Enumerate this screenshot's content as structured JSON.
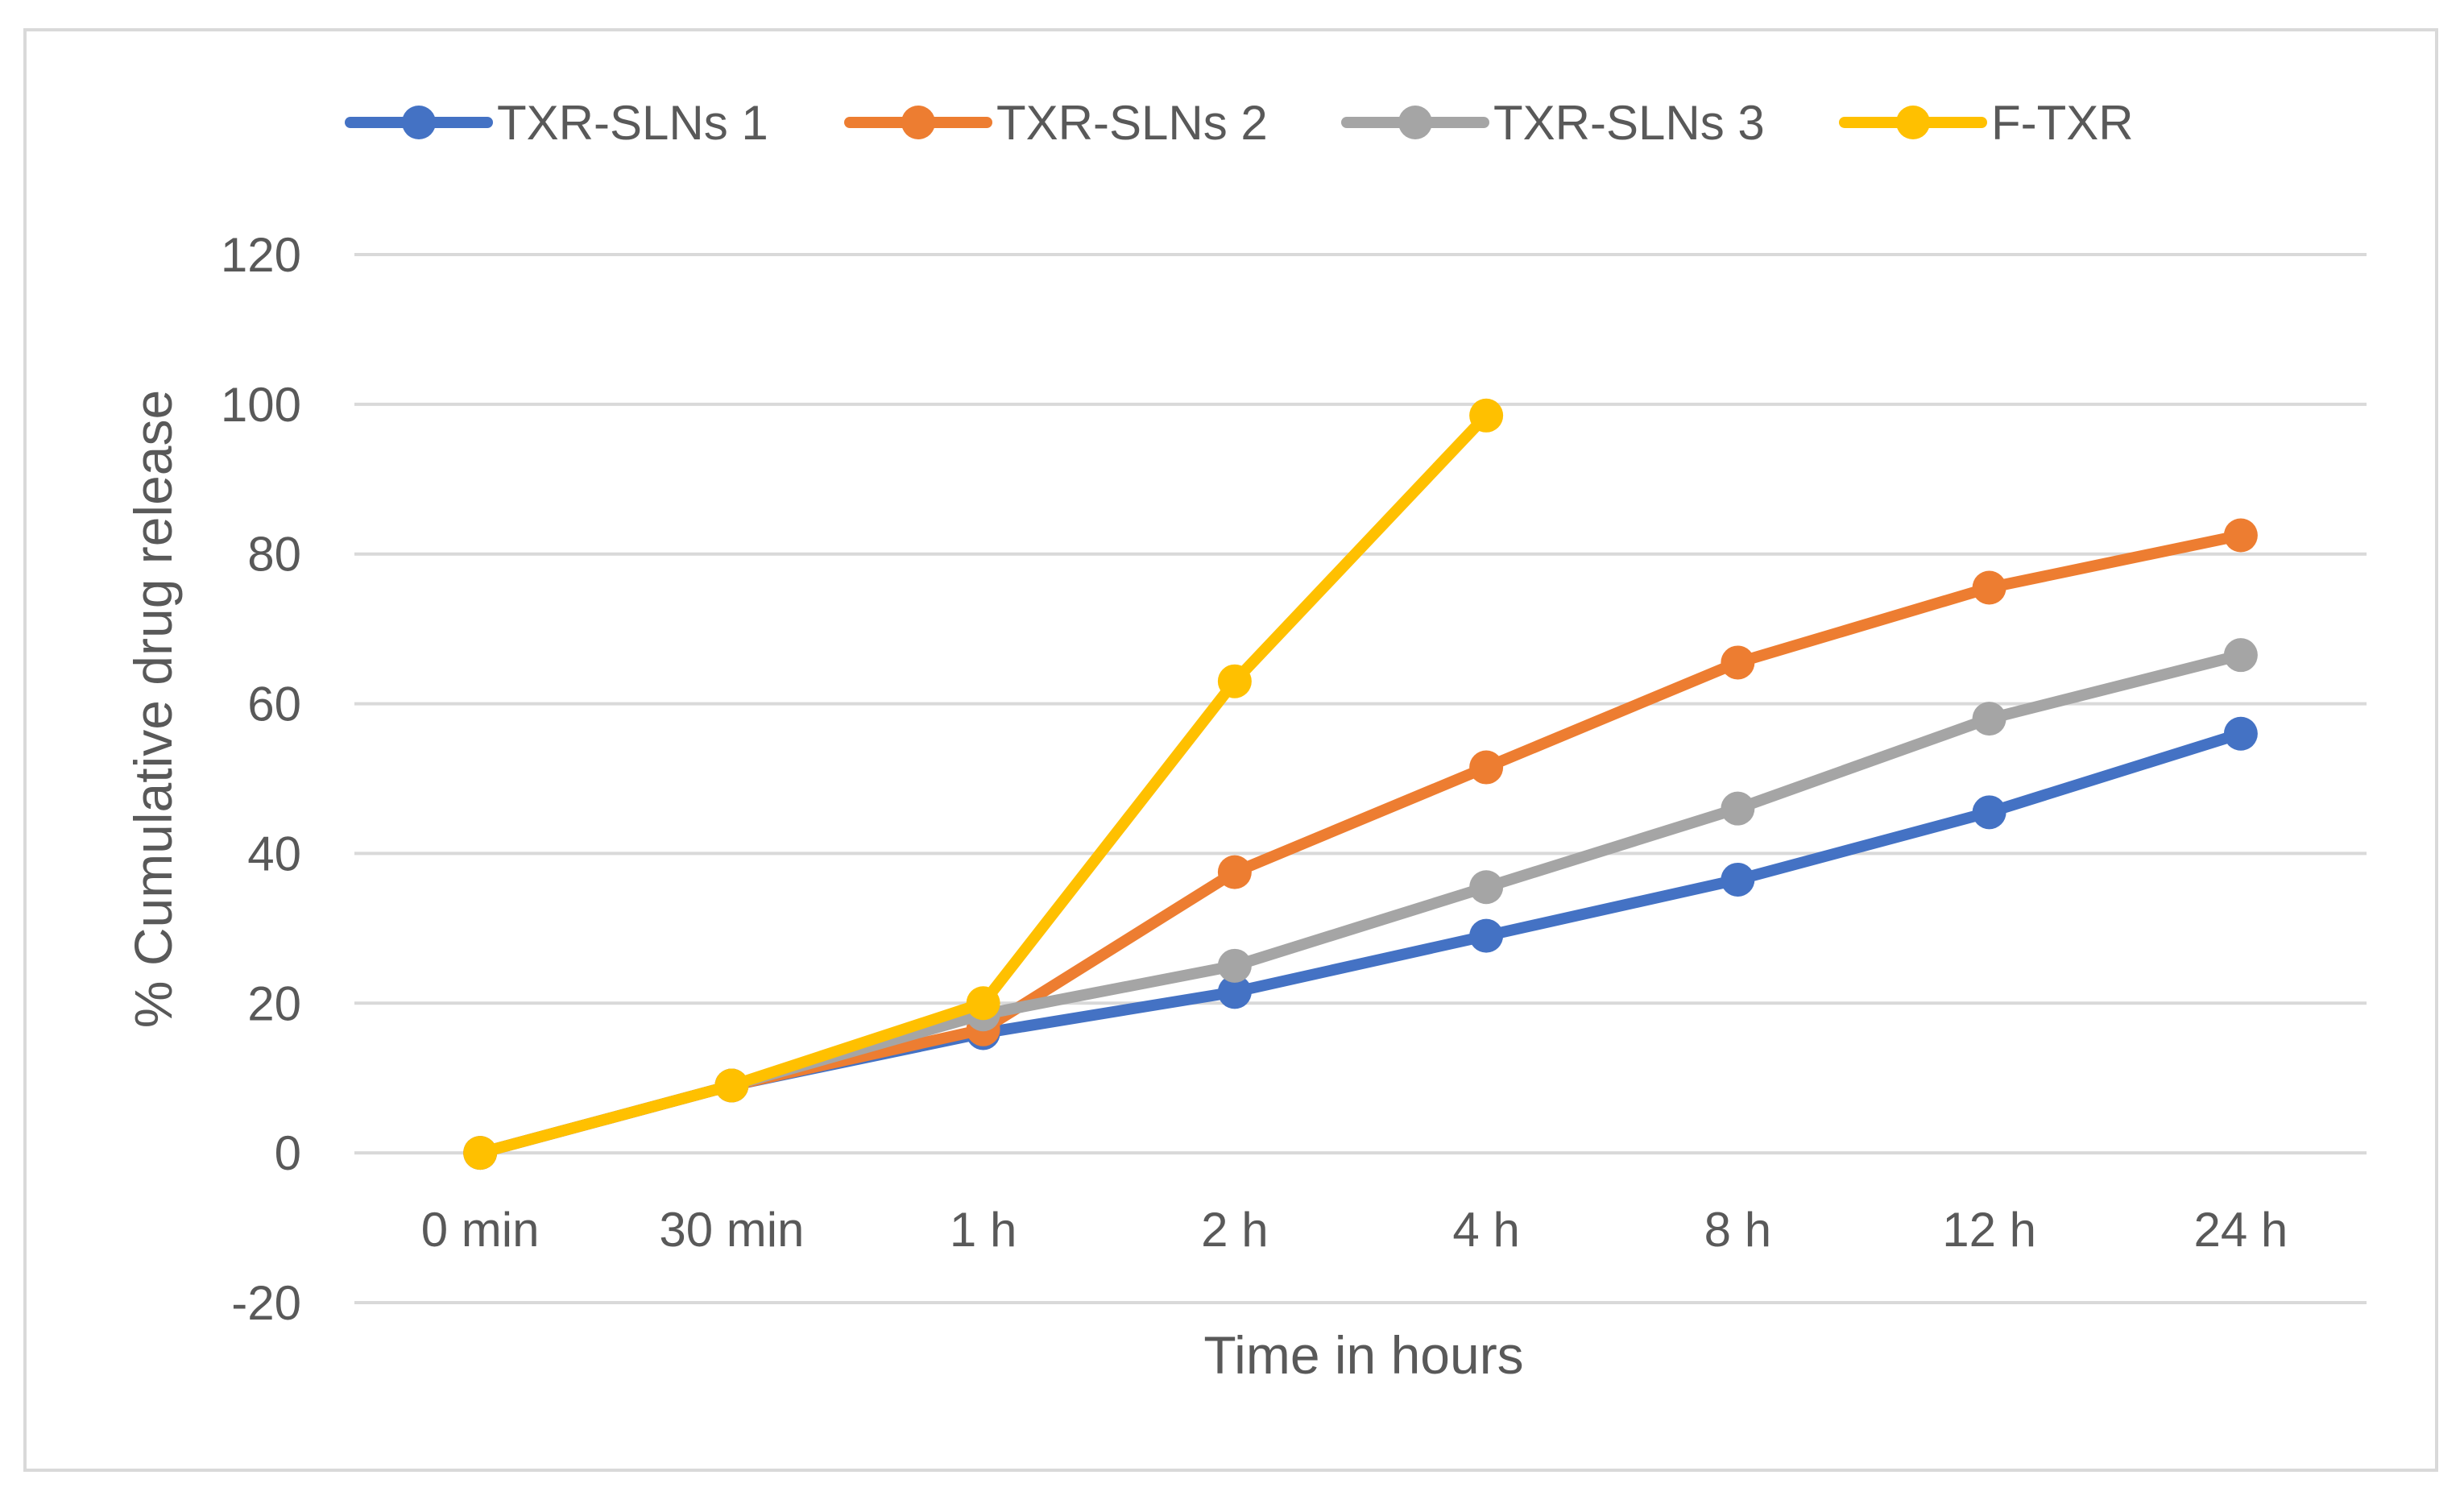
{
  "chart_data": {
    "type": "line",
    "title": "",
    "xlabel": "Time in hours",
    "ylabel": "% Cumulative drug release",
    "categories": [
      "0 min",
      "30 min",
      "1 h",
      "2 h",
      "4 h",
      "8 h",
      "12 h",
      "24 h"
    ],
    "ylim": [
      -20,
      120
    ],
    "yticks": [
      -20,
      0,
      20,
      40,
      60,
      80,
      100,
      120
    ],
    "grid": true,
    "legend_position": "top",
    "series": [
      {
        "name": "TXR-SLNs 1",
        "color": "#4472C4",
        "values": [
          0,
          9,
          16,
          21.5,
          29,
          36.5,
          45.5,
          56
        ]
      },
      {
        "name": "TXR-SLNs 2",
        "color": "#ED7D31",
        "values": [
          0,
          9,
          16.5,
          37.5,
          51.5,
          65.5,
          75.5,
          82.5
        ]
      },
      {
        "name": "TXR-SLNs 3",
        "color": "#A5A5A5",
        "values": [
          0,
          9,
          18.5,
          25,
          35.5,
          46,
          58,
          66.5
        ]
      },
      {
        "name": "F-TXR",
        "color": "#FFC000",
        "values": [
          0,
          9,
          20,
          63,
          98.5,
          null,
          null,
          null
        ]
      }
    ]
  }
}
